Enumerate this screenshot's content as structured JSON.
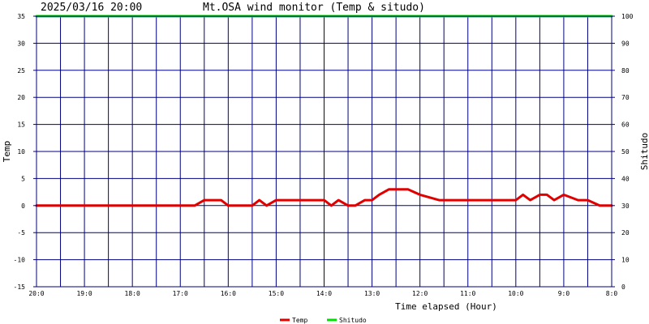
{
  "header": {
    "timestamp": "2025/03/16 20:00",
    "title": "Mt.OSA wind monitor (Temp & situdo)"
  },
  "chart_data": {
    "type": "line",
    "xlabel": "Time elapsed (Hour)",
    "ylabel_left": "Temp",
    "ylabel_right": "Shitudo",
    "xlim": [
      0,
      24
    ],
    "x_ticks": [
      0,
      2,
      4,
      6,
      8,
      10,
      12,
      14,
      16,
      18,
      20,
      22,
      24
    ],
    "x_tick_labels": [
      "20:0",
      "19:0",
      "18:0",
      "17:0",
      "16:0",
      "15:0",
      "14:0",
      "13:0",
      "12:0",
      "11:0",
      "10:0",
      "9:0",
      "8:0"
    ],
    "x_grid_step": 1,
    "ylim_left": [
      -15,
      35
    ],
    "y_ticks_left": [
      -15,
      -10,
      -5,
      0,
      5,
      10,
      15,
      20,
      25,
      30,
      35
    ],
    "ylim_right": [
      0,
      100
    ],
    "y_ticks_right": [
      0,
      10,
      20,
      30,
      40,
      50,
      60,
      70,
      80,
      90,
      100
    ],
    "grid": true,
    "legend_position": "bottom-center",
    "series": [
      {
        "name": "Temp",
        "axis": "left",
        "color": "#e00000",
        "x": [
          0,
          6.6,
          7,
          7.7,
          8,
          9,
          9.3,
          9.6,
          10,
          12,
          12.3,
          12.6,
          13,
          13.3,
          13.7,
          14,
          14.3,
          14.7,
          15,
          15.5,
          16,
          16.8,
          17,
          17.5,
          18,
          20,
          20.3,
          20.6,
          21,
          21.3,
          21.6,
          22,
          22.6,
          23,
          23.5,
          24
        ],
        "values": [
          0,
          0,
          1,
          1,
          0,
          0,
          1,
          0,
          1,
          1,
          0,
          1,
          0,
          0,
          1,
          1,
          2,
          3,
          3,
          3,
          2,
          1,
          1,
          1,
          1,
          1,
          2,
          1,
          2,
          2,
          1,
          2,
          1,
          1,
          0,
          0
        ]
      },
      {
        "name": "Shitudo",
        "axis": "right",
        "color": "#00e000",
        "x": [
          0,
          24
        ],
        "values": [
          100,
          100
        ]
      }
    ]
  }
}
